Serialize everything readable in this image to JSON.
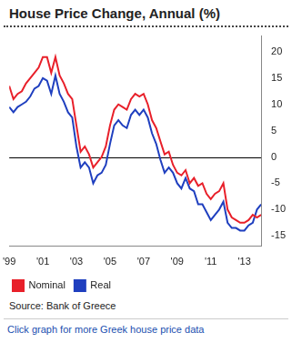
{
  "chart_data": {
    "type": "line",
    "title": "House Price Change, Annual (%)",
    "source": "Source: Bank of Greece",
    "footer": "Click graph for more Greek house price data",
    "categories": [
      "'99",
      null,
      null,
      null,
      null,
      null,
      null,
      null,
      "'01",
      null,
      null,
      null,
      null,
      null,
      null,
      null,
      "'03",
      null,
      null,
      null,
      null,
      null,
      null,
      null,
      "'05",
      null,
      null,
      null,
      null,
      null,
      null,
      null,
      "'07",
      null,
      null,
      null,
      null,
      null,
      null,
      null,
      "'09",
      null,
      null,
      null,
      null,
      null,
      null,
      null,
      "'11",
      null,
      null,
      null,
      null,
      null,
      null,
      null,
      "'13",
      null,
      null,
      null,
      null
    ],
    "series": [
      {
        "name": "Nominal",
        "color": "#e8202a",
        "values": [
          13.5,
          11,
          12,
          12.5,
          14,
          15,
          16,
          17,
          19,
          19,
          16,
          19,
          15.5,
          14,
          12,
          11,
          6,
          1,
          2,
          0.5,
          -2,
          -1,
          0,
          2,
          6,
          9,
          10,
          9.5,
          9,
          11,
          12,
          11.5,
          12,
          10,
          7,
          5.5,
          3,
          0.5,
          1,
          -1.5,
          -3,
          -3.5,
          -2.5,
          -5,
          -4,
          -5.5,
          -5,
          -7,
          -8,
          -7,
          -6.5,
          -5,
          -10,
          -11.5,
          -12,
          -12.5,
          -12.5,
          -12,
          -11,
          -11.5,
          -11
        ]
      },
      {
        "name": "Real",
        "color": "#1f3fbf",
        "values": [
          9.5,
          8.5,
          9.5,
          10,
          10.5,
          11.5,
          13,
          13.5,
          15,
          14.5,
          12,
          15.5,
          12,
          10.5,
          8.5,
          7.5,
          2,
          -2,
          -1,
          -2,
          -5,
          -3.5,
          -3,
          -1.5,
          2.5,
          6,
          7,
          6,
          5.5,
          8,
          9,
          8,
          9,
          7.5,
          4.5,
          2.5,
          -0.5,
          -3,
          -2,
          -3,
          -5,
          -6,
          -4,
          -6,
          -6.5,
          -9,
          -9,
          -10.5,
          -12,
          -11,
          -10,
          -8.5,
          -12.5,
          -13.5,
          -13.5,
          -14,
          -14,
          -13,
          -12.5,
          -10,
          -9
        ]
      }
    ],
    "ylim": [
      -17,
      23
    ],
    "yticks": [
      -15,
      -10,
      -5,
      0,
      5,
      10,
      15,
      20
    ],
    "grid": false,
    "legend": "bottom-left"
  }
}
